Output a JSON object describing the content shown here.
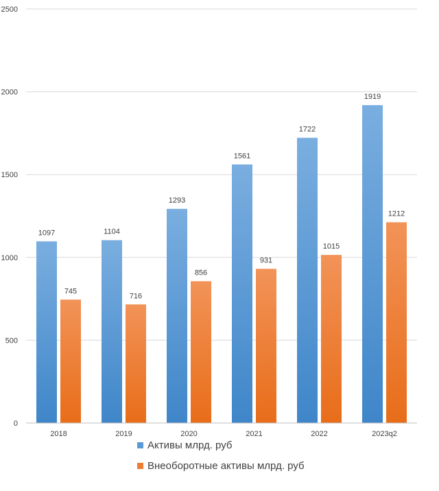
{
  "chart_data": {
    "type": "bar",
    "categories": [
      "2018",
      "2019",
      "2020",
      "2021",
      "2022",
      "2023q2"
    ],
    "series": [
      {
        "name": "Активы млрд. руб",
        "values": [
          1097,
          1104,
          1293,
          1561,
          1722,
          1919
        ],
        "color": "#5b9bd5"
      },
      {
        "name": "Внеоборотные активы млрд. руб",
        "values": [
          745,
          716,
          856,
          931,
          1015,
          1212
        ],
        "color": "#ed7d31"
      }
    ],
    "ylim": [
      0,
      2500
    ],
    "yticks": [
      "0",
      "500",
      "1000",
      "1500",
      "2000",
      "2500"
    ],
    "grid": true,
    "legend_position": "bottom"
  }
}
